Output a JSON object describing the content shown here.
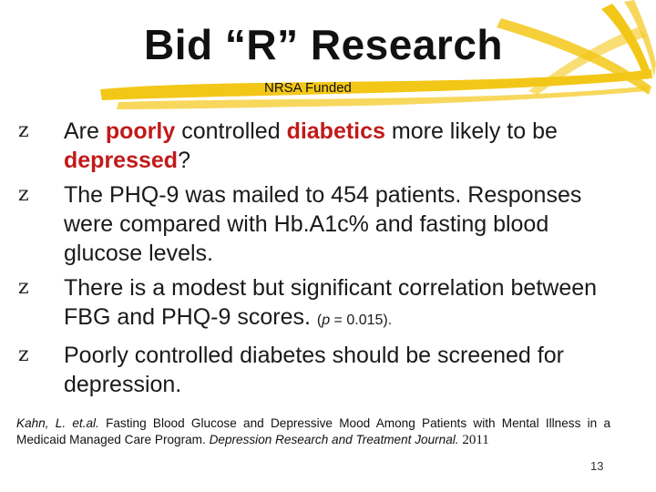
{
  "title": "Bid “R” Research",
  "subtitle": "NRSA Funded",
  "bullet_mark": "z",
  "bullets": [
    {
      "part1": "Are ",
      "hl1": "poorly",
      "part2": " controlled ",
      "hl2": "diabetics",
      "part3": " more likely to be ",
      "hl3": "depressed",
      "part4": "?"
    },
    {
      "text": "The PHQ-9 was mailed to 454 patients. Responses were compared with Hb.A1c% and fasting blood glucose levels."
    },
    {
      "text": "There is a modest but significant correlation between FBG and PHQ-9 scores. ",
      "pval_open": "(",
      "pval_p": "p",
      "pval_rest": " = 0.015)."
    },
    {
      "text": "Poorly controlled diabetes should be screened for depression."
    }
  ],
  "citation": {
    "authors": "Kahn, L. et.al.",
    "title": " Fasting Blood Glucose and Depressive Mood Among Patients with Mental Illness in a Medicaid Managed Care Program. ",
    "journal": "Depression Research and Treatment Journal.",
    "year": " 2011"
  },
  "page_number": "13",
  "colors": {
    "highlight": "#c21a1a",
    "brush": "#f2c200"
  }
}
